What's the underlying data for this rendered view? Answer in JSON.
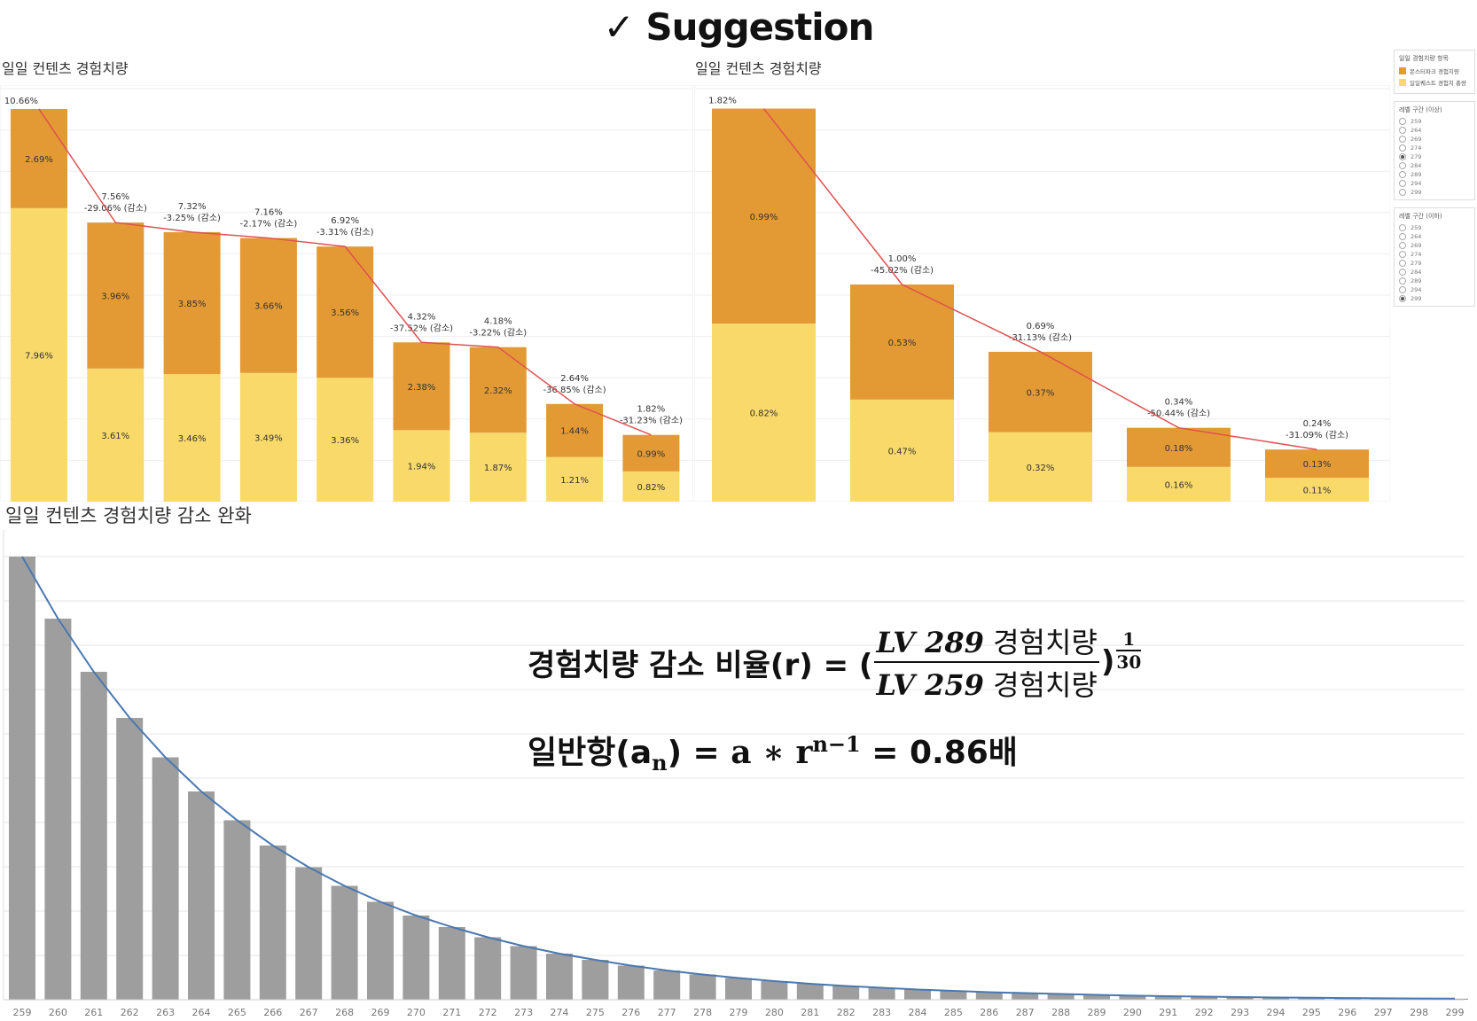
{
  "headline": "✓ Suggestion",
  "panels": {
    "left_title": "일일 컨텐츠 경험치량",
    "right_title": "일일 컨텐츠 경험치량",
    "bottom_title": "일일 컨텐츠 경험치량 감소 완화"
  },
  "legend": {
    "header": "일일 경험치량 항목",
    "items": [
      {
        "label": "몬스터파크 경험치량",
        "color": "#E39A34"
      },
      {
        "label": "일일퀘스트 경험치 총량",
        "color": "#F8D96A"
      }
    ],
    "filter1_title": "레벨 구간 (이상)",
    "filter1_options": [
      "259",
      "264",
      "269",
      "274",
      "279",
      "284",
      "289",
      "294",
      "299"
    ],
    "filter1_selected": "279",
    "filter2_title": "레벨 구간 (이하)",
    "filter2_options": [
      "259",
      "264",
      "269",
      "274",
      "279",
      "284",
      "289",
      "294",
      "299"
    ],
    "filter2_selected": "299"
  },
  "colors": {
    "orange": "#E39A34",
    "yellow": "#F8D96A",
    "red_line": "#E05050",
    "gray_bar": "#9E9E9E",
    "blue_line": "#4A78B0"
  },
  "chart_data": [
    {
      "type": "bar",
      "stacked": true,
      "series": [
        {
          "name": "일일퀘스트 경험치 총량",
          "values": [
            7.96,
            3.61,
            3.46,
            3.49,
            3.36,
            1.94,
            1.87,
            1.21,
            0.82
          ]
        },
        {
          "name": "몬스터파크 경험치량",
          "values": [
            2.69,
            3.96,
            3.85,
            3.66,
            3.56,
            2.38,
            2.32,
            1.44,
            0.99
          ]
        }
      ],
      "totals": [
        10.66,
        7.56,
        7.32,
        7.16,
        6.92,
        4.32,
        4.18,
        2.64,
        1.82
      ],
      "change_labels": [
        "",
        "-29.06% (감소)",
        "-3.25% (감소)",
        "-2.17% (감소)",
        "-3.31% (감소)",
        "-37.52% (감소)",
        "-3.22% (감소)",
        "-36.85% (감소)",
        "-31.23% (감소)"
      ],
      "unit_suffix": "%",
      "grid": true
    },
    {
      "type": "bar",
      "stacked": true,
      "series": [
        {
          "name": "일일퀘스트 경험치 총량",
          "values": [
            0.82,
            0.47,
            0.32,
            0.16,
            0.11
          ]
        },
        {
          "name": "몬스터파크 경험치량",
          "values": [
            0.99,
            0.53,
            0.37,
            0.18,
            0.13
          ]
        }
      ],
      "totals": [
        1.82,
        1.0,
        0.69,
        0.34,
        0.24
      ],
      "change_labels": [
        "",
        "-45.02% (감소)",
        "-31.13% (감소)",
        "-50.44% (감소)",
        "-31.09% (감소)"
      ],
      "unit_suffix": "%",
      "grid": true
    },
    {
      "type": "bar",
      "categories": [
        "259",
        "260",
        "261",
        "262",
        "263",
        "264",
        "265",
        "266",
        "267",
        "268",
        "269",
        "270",
        "271",
        "272",
        "273",
        "274",
        "275",
        "276",
        "277",
        "278",
        "279",
        "280",
        "281",
        "282",
        "283",
        "284",
        "285",
        "286",
        "287",
        "288",
        "289",
        "290",
        "291",
        "292",
        "293",
        "294",
        "295",
        "296",
        "297",
        "298",
        "299"
      ],
      "values": [
        100,
        86,
        74,
        63.6,
        54.7,
        47,
        40.5,
        34.8,
        29.9,
        25.7,
        22.1,
        19,
        16.4,
        14.1,
        12.1,
        10.4,
        9,
        7.7,
        6.6,
        5.7,
        4.9,
        4.2,
        3.6,
        3.1,
        2.7,
        2.3,
        2,
        1.7,
        1.5,
        1.3,
        1.1,
        0.93,
        0.8,
        0.69,
        0.59,
        0.51,
        0.44,
        0.38,
        0.32,
        0.28,
        0.24
      ],
      "trendline": true,
      "ylim": [
        0,
        100
      ],
      "grid": true
    }
  ],
  "formula": {
    "line1_prefix": "경험치량 감소 비율(r) = (",
    "num_lv": "LV 289",
    "num_word": "경험치량",
    "den_lv": "LV 259",
    "den_word": "경험치량",
    "close": ")",
    "exp_num": "1",
    "exp_den": "30",
    "line2_a": "일반항(a",
    "line2_sub": "n",
    "line2_b": ") = ",
    "line2_c": "a  ∗ r",
    "line2_sup": "n−1",
    "line2_d": " = 0.86배"
  }
}
